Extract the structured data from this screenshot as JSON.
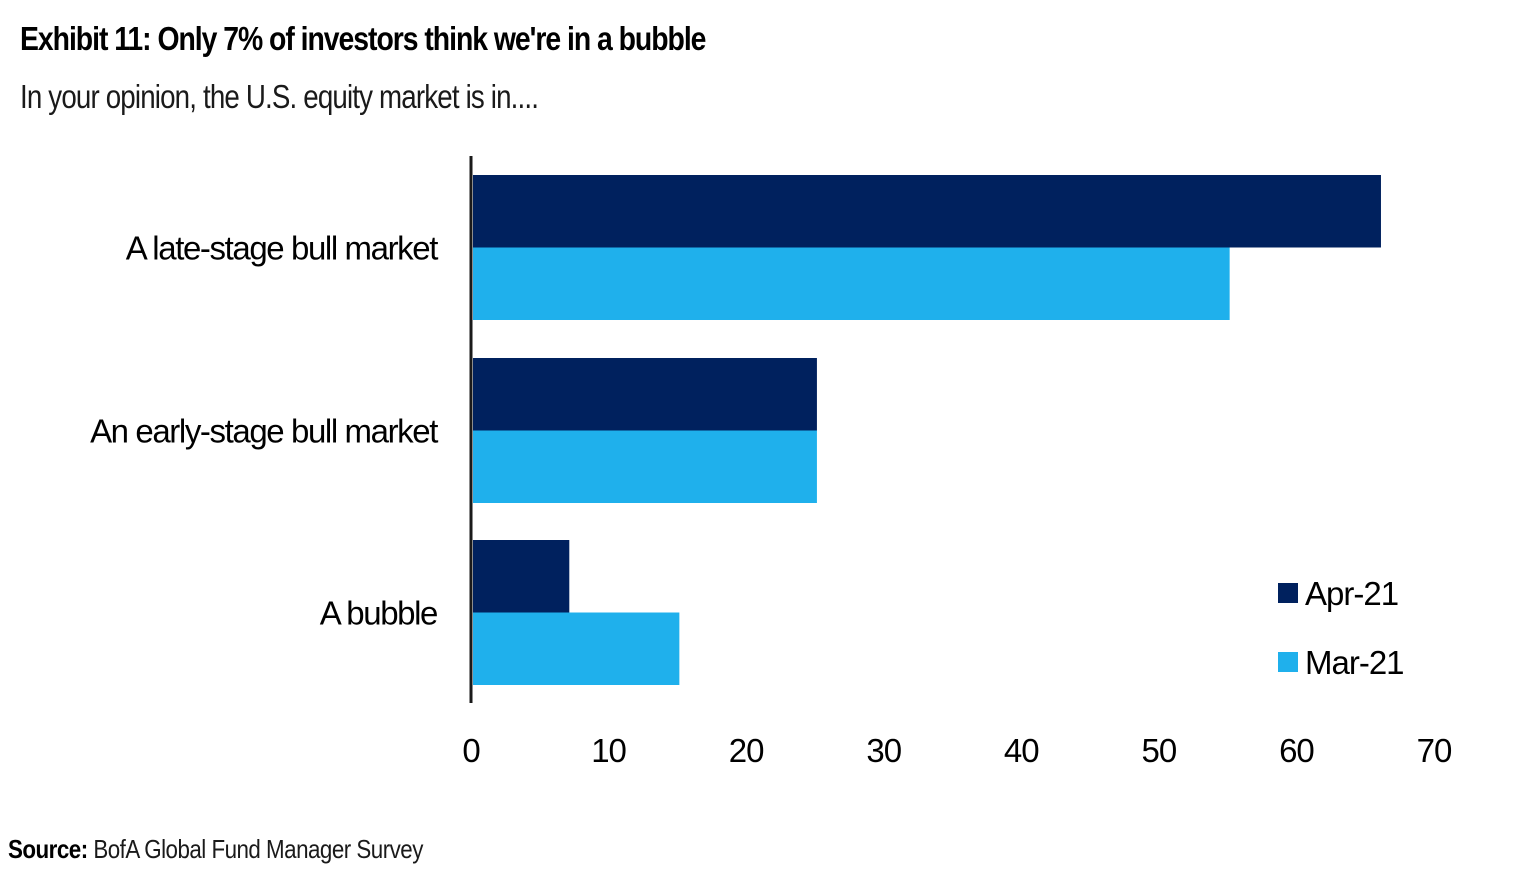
{
  "title": "Exhibit 11: Only 7% of investors think we're in a bubble",
  "subtitle": "In your opinion, the U.S. equity market is in....",
  "source": {
    "label": "Source:",
    "text": " BofA Global Fund Manager Survey"
  },
  "colors": {
    "apr": "#00215e",
    "mar": "#1fb0ec",
    "axis": "#1a1a1a"
  },
  "chart_data": {
    "type": "bar",
    "orientation": "horizontal",
    "title": "Exhibit 11: Only 7% of investors think we're in a bubble",
    "subtitle": "In your opinion, the U.S. equity market is in....",
    "categories": [
      "A late-stage bull market",
      "An early-stage bull market",
      "A bubble"
    ],
    "series": [
      {
        "name": "Apr-21",
        "color": "#00215e",
        "values": [
          66,
          25,
          7
        ]
      },
      {
        "name": "Mar-21",
        "color": "#1fb0ec",
        "values": [
          55,
          25,
          15
        ]
      }
    ],
    "xlabel": "",
    "ylabel": "",
    "xlim": [
      0,
      70
    ],
    "xticks": [
      0,
      10,
      20,
      30,
      40,
      50,
      60,
      70
    ],
    "xtick_labels": [
      "0",
      "10",
      "20",
      "30",
      "40",
      "50",
      "60",
      "70"
    ],
    "grid": false,
    "legend": {
      "placement": "bottom-right",
      "entries": [
        "Apr-21",
        "Mar-21"
      ]
    }
  }
}
